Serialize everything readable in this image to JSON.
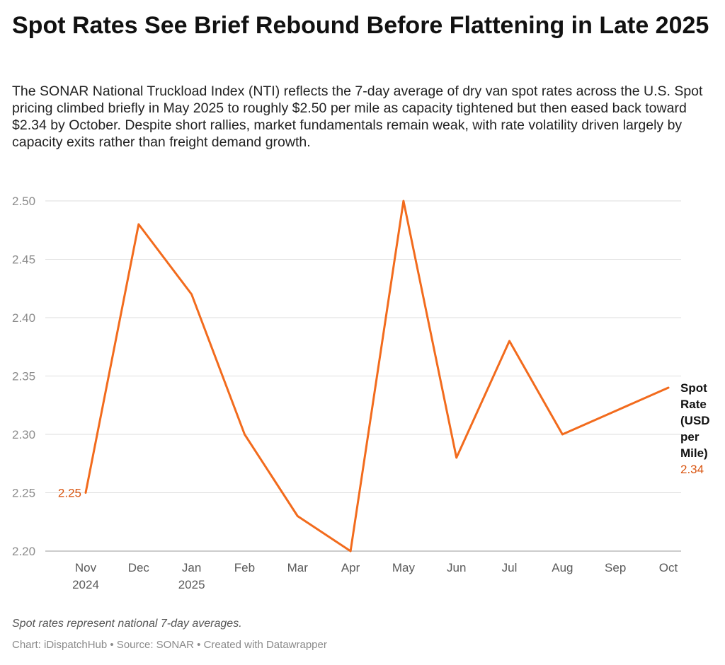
{
  "header": {
    "title": "Spot Rates See Brief Rebound Before Flattening in Late 2025",
    "subtitle": "The SONAR National Truckload Index (NTI) reflects the 7-day average of dry van spot rates across the U.S. Spot pricing climbed briefly in May 2025 to roughly $2.50 per mile as capacity tightened but then eased back toward $2.34 by October. Despite short rallies, market fundamentals remain weak, with rate volatility driven largely by capacity exits rather than freight demand growth."
  },
  "chart_data": {
    "type": "line",
    "categories": [
      "Nov|2024",
      "Dec",
      "Jan|2025",
      "Feb",
      "Mar",
      "Apr",
      "May",
      "Jun",
      "Jul",
      "Aug",
      "Sep",
      "Oct"
    ],
    "series": [
      {
        "name": "Spot Rate (USD per Mile)",
        "name_lines": [
          "Spot",
          "Rate",
          "(USD",
          "per",
          "Mile)"
        ],
        "color": "#f26b1d",
        "label_color": "#d9540f",
        "values": [
          2.25,
          2.48,
          2.42,
          2.3,
          2.23,
          2.2,
          2.5,
          2.28,
          2.38,
          2.3,
          2.32,
          2.34
        ],
        "start_label": "2.25",
        "end_label": "2.34"
      }
    ],
    "yticks": [
      "2.20",
      "2.25",
      "2.30",
      "2.35",
      "2.40",
      "2.45",
      "2.50"
    ],
    "ylim": [
      2.2,
      2.5
    ],
    "grid": true,
    "legend": "inline-right"
  },
  "notes": {
    "note": "Spot rates represent national 7-day averages.",
    "footer": "Chart: iDispatchHub • Source: SONAR • Created with Datawrapper"
  }
}
